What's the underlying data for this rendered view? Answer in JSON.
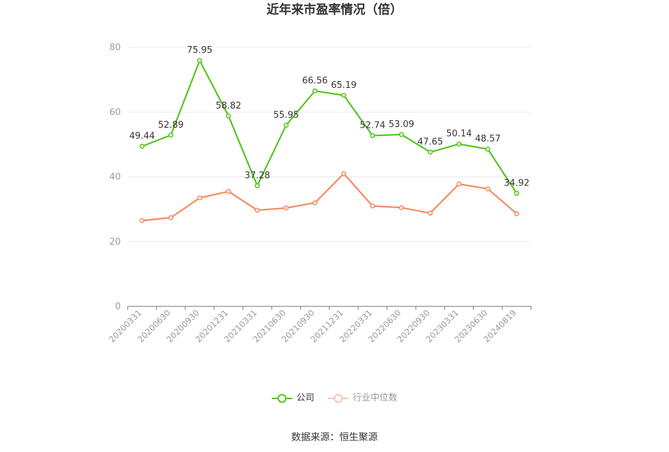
{
  "chart_data": {
    "type": "line",
    "title": "近年来市盈率情况（倍）",
    "categories": [
      "20200331",
      "20200630",
      "20200930",
      "20201231",
      "20210331",
      "20210630",
      "20210930",
      "20211231",
      "20220331",
      "20220630",
      "20220930",
      "20230331",
      "20230630",
      "20240819"
    ],
    "series": [
      {
        "name": "公司",
        "color": "#52c41a",
        "values": [
          49.44,
          52.89,
          75.95,
          58.82,
          37.28,
          55.95,
          66.56,
          65.19,
          52.74,
          53.09,
          47.65,
          50.14,
          48.57,
          34.92
        ],
        "labels": [
          "49.44",
          "52.89",
          "75.95",
          "58.82",
          "37.28",
          "55.95",
          "66.56",
          "65.19",
          "52.74",
          "53.09",
          "47.65",
          "50.14",
          "48.57",
          "34.92"
        ]
      },
      {
        "name": "行业中位数",
        "color": "#f4895f",
        "values": [
          26.5,
          27.4,
          33.5,
          35.5,
          29.7,
          30.4,
          32.0,
          41.0,
          31.0,
          30.5,
          28.8,
          37.8,
          36.3,
          28.6
        ]
      }
    ],
    "ylim": [
      0,
      80
    ],
    "yticks": [
      "0",
      "20",
      "40",
      "60",
      "80"
    ],
    "xlabel": "",
    "ylabel": "",
    "grid": true,
    "legend_position": "bottom-center"
  },
  "source": "数据来源：恒生聚源"
}
